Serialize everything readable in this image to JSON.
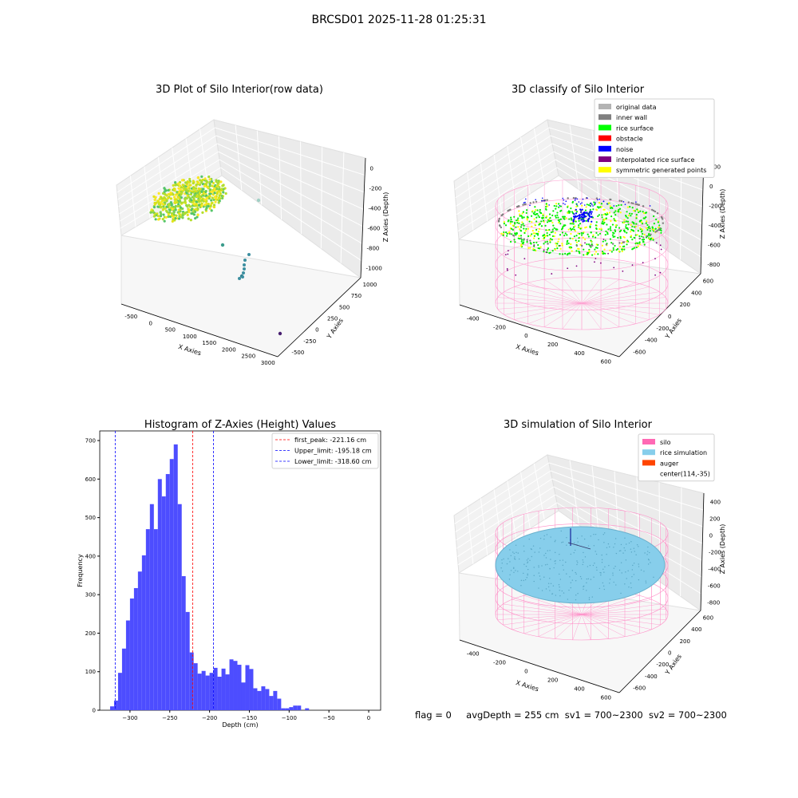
{
  "figure": {
    "suptitle": "BRCSD01 2025-11-28 01:25:31",
    "footer": {
      "flag": "flag = 0",
      "avg_depth": "avgDepth = 255 cm",
      "sv1": "sv1 = 700~2300",
      "sv2": "sv2 = 700~2300"
    }
  },
  "chart_data": [
    {
      "type": "scatter",
      "title": "3D Plot of Silo Interior(row data)",
      "xlabel": "X Axies",
      "ylabel": "Y Axies",
      "zlabel": "Z Axies (Depth)",
      "x_ticks": [
        "-500",
        "0",
        "500",
        "1000",
        "1500",
        "2000",
        "2500",
        "3000"
      ],
      "y_ticks": [
        "-500",
        "-250",
        "0",
        "250",
        "500",
        "750",
        "1000"
      ],
      "z_ticks": [
        "0",
        "-200",
        "-400",
        "-600",
        "-800",
        "-1000"
      ],
      "xlim": [
        -600,
        3200
      ],
      "ylim": [
        -600,
        1100
      ],
      "zlim": [
        -1050,
        50
      ],
      "colormap": "viridis",
      "outlier_points": [
        {
          "x": 1400,
          "y": 550,
          "z": -400
        },
        {
          "x": 500,
          "y": 200,
          "z": -700
        },
        {
          "x": 1300,
          "y": -100,
          "z": -950
        },
        {
          "x": 3050,
          "y": -400,
          "z": -1000
        }
      ]
    },
    {
      "type": "scatter",
      "title": "3D classify of Silo Interior",
      "xlabel": "X Axies",
      "ylabel": "Y Axies",
      "zlabel": "Z Axies (Depth)",
      "x_ticks": [
        "-400",
        "-200",
        "0",
        "200",
        "400",
        "600"
      ],
      "y_ticks": [
        "-600",
        "-400",
        "-200",
        "0",
        "200",
        "400",
        "600"
      ],
      "z_ticks": [
        "200",
        "0",
        "-200",
        "-400",
        "-600",
        "-800"
      ],
      "legend_position": "top-right",
      "legend": [
        {
          "label": "original data",
          "color": "#b3b3b3"
        },
        {
          "label": "inner wall",
          "color": "#808080"
        },
        {
          "label": "rice surface",
          "color": "#00ff00"
        },
        {
          "label": "obstacle",
          "color": "#ff0000"
        },
        {
          "label": "noise",
          "color": "#0000ff"
        },
        {
          "label": "interpolated rice surface",
          "color": "#800080"
        },
        {
          "label": "symmetric generated points",
          "color": "#ffff00"
        }
      ]
    },
    {
      "type": "bar",
      "title": "Histogram of Z-Axies (Height) Values",
      "xlabel": "Depth (cm)",
      "ylabel": "Frequency",
      "bar_color": "#4d4dff",
      "xlim": [
        -338,
        15
      ],
      "ylim": [
        0,
        725
      ],
      "x_ticks": [
        -300,
        -250,
        -200,
        -150,
        -100,
        -50,
        0
      ],
      "y_ticks": [
        0,
        100,
        200,
        300,
        400,
        500,
        600,
        700
      ],
      "bin_start": -325,
      "bin_width": 5,
      "values": [
        10,
        25,
        97,
        160,
        233,
        290,
        317,
        360,
        402,
        470,
        535,
        470,
        600,
        555,
        613,
        652,
        690,
        535,
        348,
        255,
        150,
        122,
        95,
        102,
        90,
        97,
        110,
        87,
        108,
        93,
        132,
        128,
        118,
        72,
        117,
        107,
        57,
        50,
        62,
        55,
        37,
        50,
        30,
        5,
        5,
        8,
        12,
        12,
        0,
        5
      ],
      "vlines": [
        {
          "x": -221.16,
          "label": "first_peak: -221.16 cm",
          "color": "#ff0000"
        },
        {
          "x": -195.18,
          "label": "Upper_limit: -195.18 cm",
          "color": "#0000ff"
        },
        {
          "x": -318.6,
          "label": "Lower_limit: -318.60 cm",
          "color": "#0000ff"
        }
      ],
      "legend_position": "top-right"
    },
    {
      "type": "scatter",
      "title": "3D simulation of Silo Interior",
      "xlabel": "X Axies",
      "ylabel": "Y Axies",
      "zlabel": "Z Axies (Depth)",
      "x_ticks": [
        "-400",
        "-200",
        "0",
        "200",
        "400",
        "600"
      ],
      "y_ticks": [
        "-600",
        "-400",
        "-200",
        "0",
        "200",
        "400",
        "600"
      ],
      "z_ticks": [
        "400",
        "200",
        "0",
        "-200",
        "-400",
        "-600",
        "-800"
      ],
      "legend_position": "top-right",
      "legend": [
        {
          "label": "silo",
          "color": "#ff69b4"
        },
        {
          "label": "rice simulation",
          "color": "#87ceeb"
        },
        {
          "label": "auger",
          "color": "#ff4500"
        },
        {
          "label": "center(114,-35)",
          "color": ""
        }
      ]
    }
  ]
}
